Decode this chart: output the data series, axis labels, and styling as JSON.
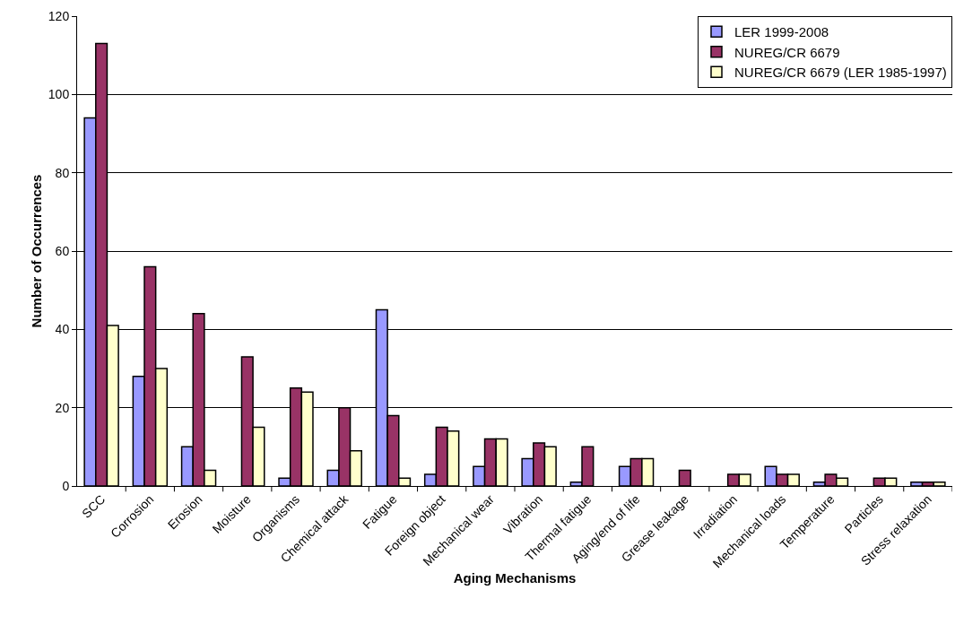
{
  "chart_data": {
    "type": "bar",
    "xlabel": "Aging Mechanisms",
    "ylabel": "Number of Occurrences",
    "categories": [
      "SCC",
      "Corrosion",
      "Erosion",
      "Moisture",
      "Organisms",
      "Chemical attack",
      "Fatigue",
      "Foreign object",
      "Mechanical wear",
      "Vibration",
      "Thermal fatigue",
      "Aging/end of life",
      "Grease leakage",
      "Irradiation",
      "Mechanical loads",
      "Temperature",
      "Particles",
      "Stress relaxation"
    ],
    "series": [
      {
        "name": "LER 1999-2008",
        "color": "#9999ff",
        "values": [
          94,
          28,
          10,
          0,
          2,
          4,
          45,
          3,
          5,
          7,
          1,
          5,
          0,
          0,
          5,
          1,
          0,
          1
        ]
      },
      {
        "name": "NUREG/CR 6679",
        "color": "#993366",
        "values": [
          113,
          56,
          44,
          33,
          25,
          20,
          18,
          15,
          12,
          11,
          10,
          7,
          4,
          3,
          3,
          3,
          2,
          1
        ]
      },
      {
        "name": "NUREG/CR 6679 (LER 1985-1997)",
        "color": "#ffffcc",
        "values": [
          41,
          30,
          4,
          15,
          24,
          9,
          2,
          14,
          12,
          10,
          0,
          7,
          0,
          3,
          3,
          2,
          2,
          1
        ]
      }
    ],
    "ylim": [
      0,
      120
    ],
    "yticks": [
      0,
      20,
      40,
      60,
      80,
      100,
      120
    ],
    "grid": "y",
    "legend": "top right"
  }
}
